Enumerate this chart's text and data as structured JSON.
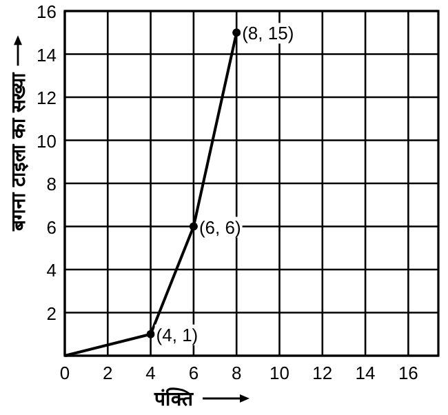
{
  "chart_data": {
    "type": "line",
    "xlabel": "पंक्ति",
    "ylabel": "बगना टाइला का सख्या",
    "x": [
      0,
      4,
      6,
      8
    ],
    "series": [
      {
        "color": "#000000",
        "values": [
          0,
          1,
          6,
          15
        ]
      }
    ],
    "xlim": [
      0,
      17.4
    ],
    "ylim": [
      0,
      16
    ],
    "xticks": [
      0,
      2,
      4,
      6,
      8,
      10,
      12,
      14,
      16
    ],
    "yticks": [
      {
        "value": 0,
        "label": null
      },
      2,
      4,
      6,
      8,
      10,
      12,
      14,
      16
    ],
    "grid": true,
    "marker": "circle",
    "line_style": "solid",
    "annotations": [
      {
        "text": "(4, 1)",
        "x": 4,
        "y": 1
      },
      {
        "text": "(6, 6)",
        "x": 6,
        "y": 6
      },
      {
        "text": "(8, 15)",
        "x": 8,
        "y": 15
      }
    ]
  }
}
